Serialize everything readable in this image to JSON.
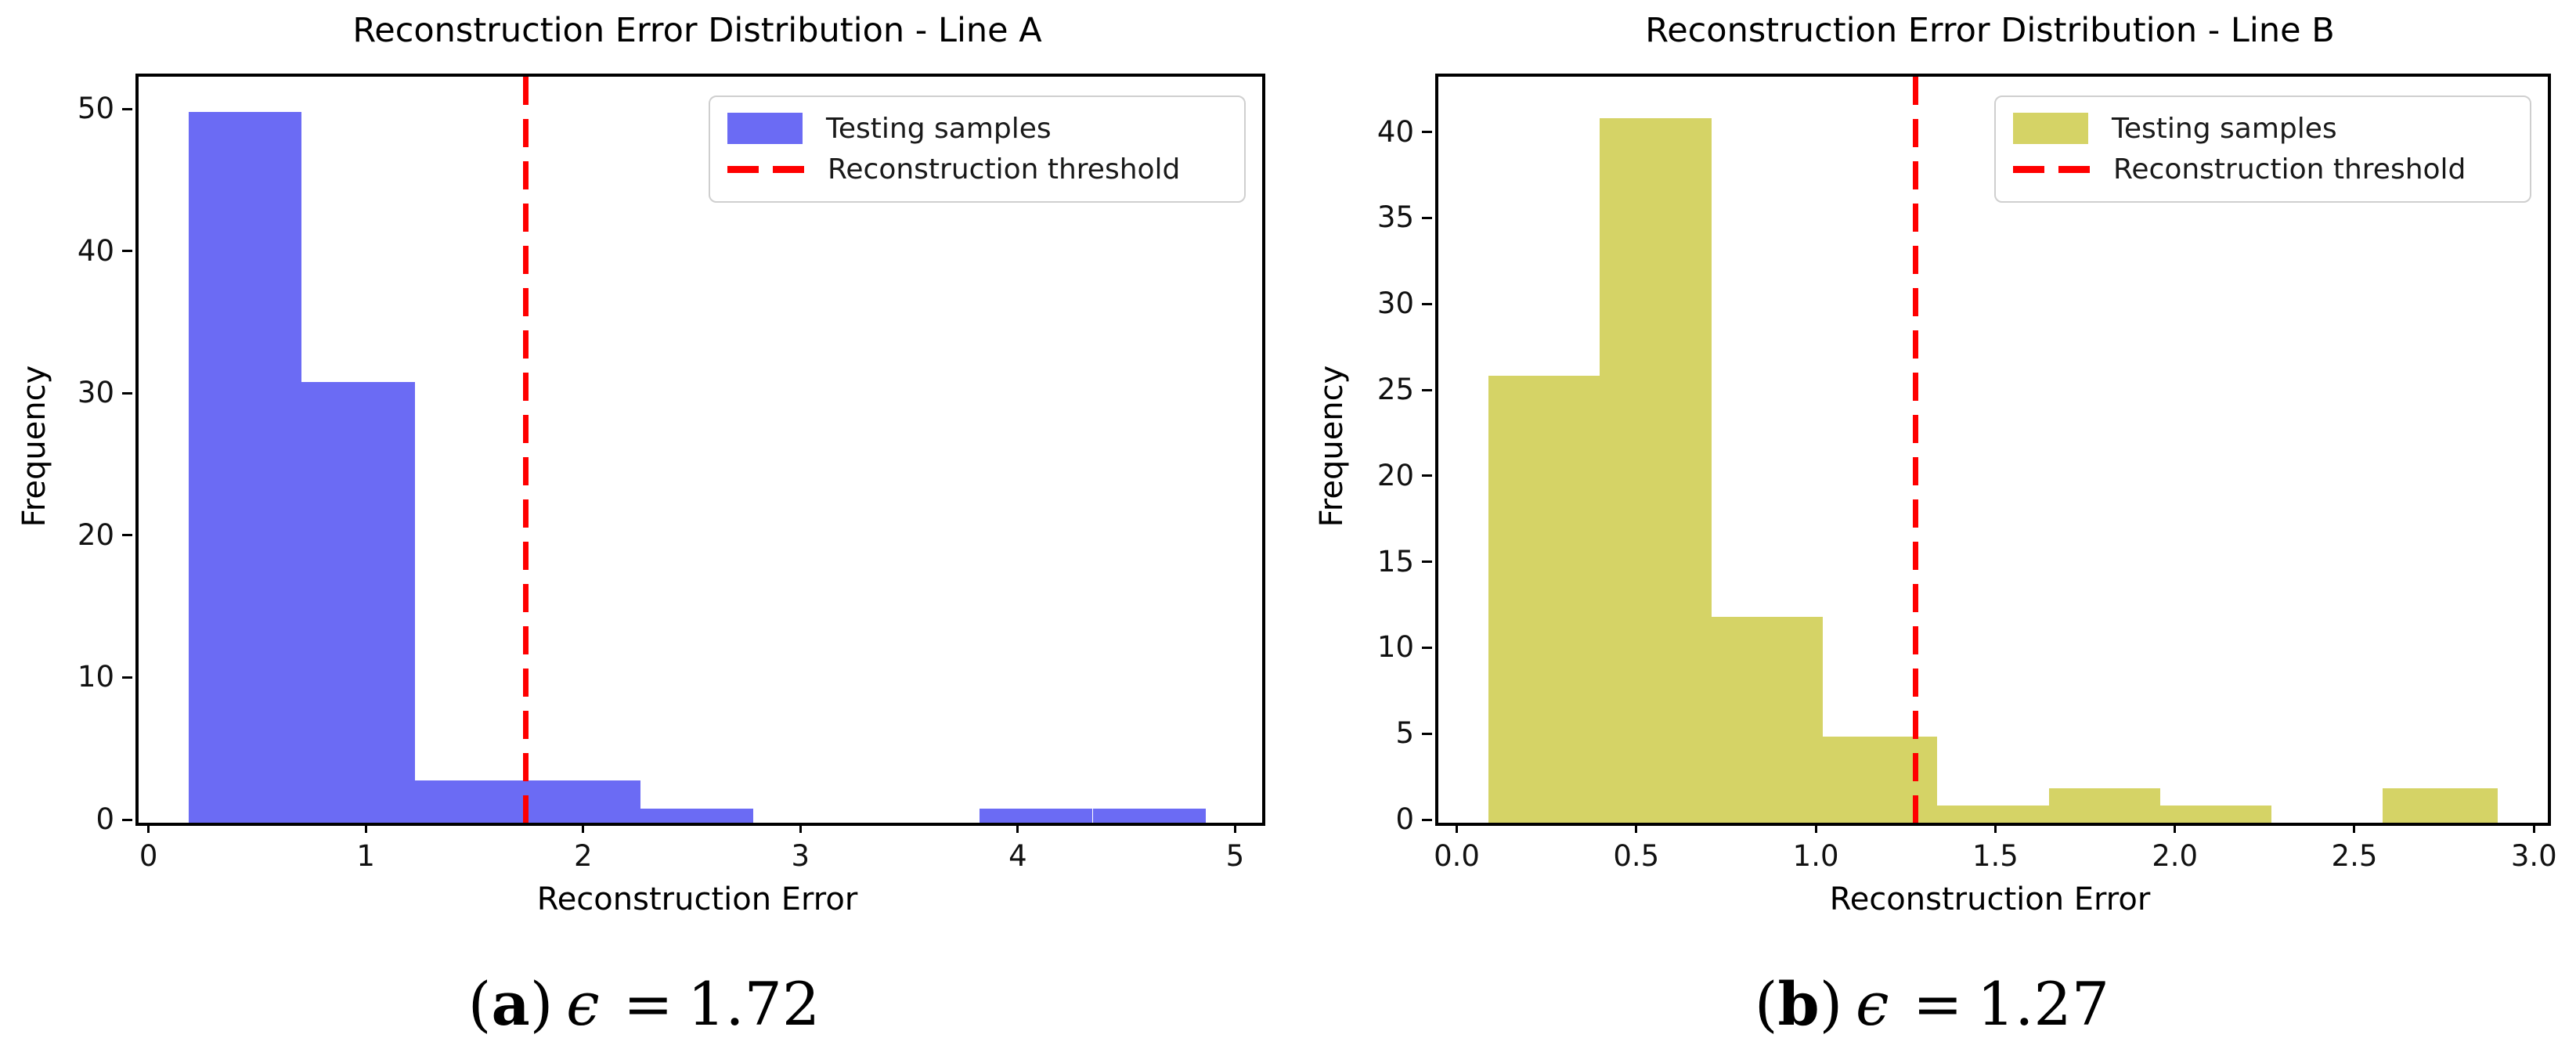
{
  "figure": {
    "description": "Reconstruction error histograms for two production lines with anomaly-detection thresholds"
  },
  "chart_data": [
    {
      "type": "bar",
      "kind": "histogram",
      "title": "Reconstruction Error Distribution - Line A",
      "xlabel": "Reconstruction Error",
      "ylabel": "Frequency",
      "bar_color": "#6b6bf4",
      "threshold_color": "#ff0000",
      "threshold": 1.72,
      "bin_edges": [
        0.17,
        0.69,
        1.21,
        1.73,
        2.25,
        2.77,
        3.29,
        3.81,
        4.33,
        4.85
      ],
      "counts": [
        50,
        31,
        3,
        3,
        1,
        0,
        0,
        1,
        1
      ],
      "xlim": [
        -0.06,
        5.11
      ],
      "ylim": [
        0,
        52.5
      ],
      "xticks": [
        0,
        1,
        2,
        3,
        4,
        5
      ],
      "xtick_labels": [
        "0",
        "1",
        "2",
        "3",
        "4",
        "5"
      ],
      "yticks": [
        0,
        10,
        20,
        30,
        40,
        50
      ],
      "ytick_labels": [
        "0",
        "10",
        "20",
        "30",
        "40",
        "50"
      ],
      "grid": false,
      "legend": {
        "position": "upper right",
        "samples_label": "Testing samples",
        "threshold_label": "Reconstruction threshold"
      },
      "caption": {
        "open": "(",
        "letter": "a",
        "close": ")",
        "symbol": "ϵ",
        "eq": "=",
        "value": "1.72"
      }
    },
    {
      "type": "bar",
      "kind": "histogram",
      "title": "Reconstruction Error Distribution - Line B",
      "xlabel": "Reconstruction Error",
      "ylabel": "Frequency",
      "bar_color": "#d5d366",
      "threshold_color": "#ff0000",
      "threshold": 1.27,
      "bin_edges": [
        0.08,
        0.39,
        0.7,
        1.01,
        1.33,
        1.64,
        1.95,
        2.26,
        2.57,
        2.89
      ],
      "counts": [
        26,
        41,
        12,
        5,
        1,
        2,
        1,
        0,
        2
      ],
      "xlim": [
        -0.06,
        3.03
      ],
      "ylim": [
        0,
        43.4
      ],
      "xticks": [
        0.0,
        0.5,
        1.0,
        1.5,
        2.0,
        2.5,
        3.0
      ],
      "xtick_labels": [
        "0.0",
        "0.5",
        "1.0",
        "1.5",
        "2.0",
        "2.5",
        "3.0"
      ],
      "yticks": [
        0,
        5,
        10,
        15,
        20,
        25,
        30,
        35,
        40
      ],
      "ytick_labels": [
        "0",
        "5",
        "10",
        "15",
        "20",
        "25",
        "30",
        "35",
        "40"
      ],
      "grid": false,
      "legend": {
        "position": "upper right",
        "samples_label": "Testing samples",
        "threshold_label": "Reconstruction threshold"
      },
      "caption": {
        "open": "(",
        "letter": "b",
        "close": ")",
        "symbol": "ϵ",
        "eq": "=",
        "value": "1.27"
      }
    }
  ]
}
